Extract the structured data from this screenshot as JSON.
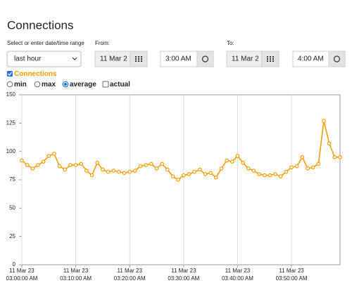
{
  "title": "Connections",
  "range_label": "Select or enter date/time range",
  "range_value": "last hour",
  "from": {
    "label": "From:",
    "date": "11 Mar 2",
    "time": "3:00 AM"
  },
  "to": {
    "label": "To:",
    "date": "11 Mar 2",
    "time": "4:00 AM"
  },
  "series_toggle": "Connections",
  "modes": [
    "min",
    "max",
    "average",
    "actual"
  ],
  "chart_data": {
    "type": "line",
    "x": [
      "03:00:00 AM",
      "03:01:00 AM",
      "03:02:00 AM",
      "03:03:00 AM",
      "03:04:00 AM",
      "03:05:00 AM",
      "03:06:00 AM",
      "03:07:00 AM",
      "03:08:00 AM",
      "03:09:00 AM",
      "03:10:00 AM",
      "03:11:00 AM",
      "03:12:00 AM",
      "03:13:00 AM",
      "03:14:00 AM",
      "03:15:00 AM",
      "03:16:00 AM",
      "03:17:00 AM",
      "03:18:00 AM",
      "03:19:00 AM",
      "03:20:00 AM",
      "03:21:00 AM",
      "03:22:00 AM",
      "03:23:00 AM",
      "03:24:00 AM",
      "03:25:00 AM",
      "03:26:00 AM",
      "03:27:00 AM",
      "03:28:00 AM",
      "03:29:00 AM",
      "03:30:00 AM",
      "03:31:00 AM",
      "03:32:00 AM",
      "03:33:00 AM",
      "03:34:00 AM",
      "03:35:00 AM",
      "03:36:00 AM",
      "03:37:00 AM",
      "03:38:00 AM",
      "03:39:00 AM",
      "03:40:00 AM",
      "03:41:00 AM",
      "03:42:00 AM",
      "03:43:00 AM",
      "03:44:00 AM",
      "03:45:00 AM",
      "03:46:00 AM",
      "03:47:00 AM",
      "03:48:00 AM",
      "03:49:00 AM",
      "03:50:00 AM",
      "03:51:00 AM",
      "03:52:00 AM",
      "03:53:00 AM",
      "03:54:00 AM",
      "03:55:00 AM",
      "03:56:00 AM",
      "03:57:00 AM",
      "03:58:00 AM",
      "03:59:00 AM"
    ],
    "series": [
      {
        "name": "Connections",
        "color": "#f59c00",
        "values": [
          92,
          88,
          85,
          88,
          91,
          96,
          98,
          87,
          84,
          88,
          88,
          89,
          83,
          79,
          90,
          84,
          82,
          83,
          82,
          81,
          82,
          83,
          87,
          88,
          89,
          85,
          89,
          84,
          78,
          75,
          79,
          80,
          82,
          84,
          80,
          81,
          77,
          85,
          92,
          91,
          96,
          90,
          85,
          83,
          80,
          79,
          79,
          80,
          78,
          82,
          86,
          87,
          95,
          85,
          86,
          89,
          127,
          107,
          95,
          95
        ]
      }
    ],
    "ylim": [
      0,
      150
    ],
    "yticks": [
      0,
      25,
      50,
      75,
      100,
      125,
      150
    ],
    "xticks": [
      {
        "date": "11 Mar 23",
        "time": "03:00:00 AM"
      },
      {
        "date": "11 Mar 23",
        "time": "03:10:00 AM"
      },
      {
        "date": "11 Mar 23",
        "time": "03:20:00 AM"
      },
      {
        "date": "11 Mar 23",
        "time": "03:30:00 AM"
      },
      {
        "date": "11 Mar 23",
        "time": "03:40:00 AM"
      },
      {
        "date": "11 Mar 23",
        "time": "03:50:00 AM"
      }
    ],
    "grid": true
  }
}
